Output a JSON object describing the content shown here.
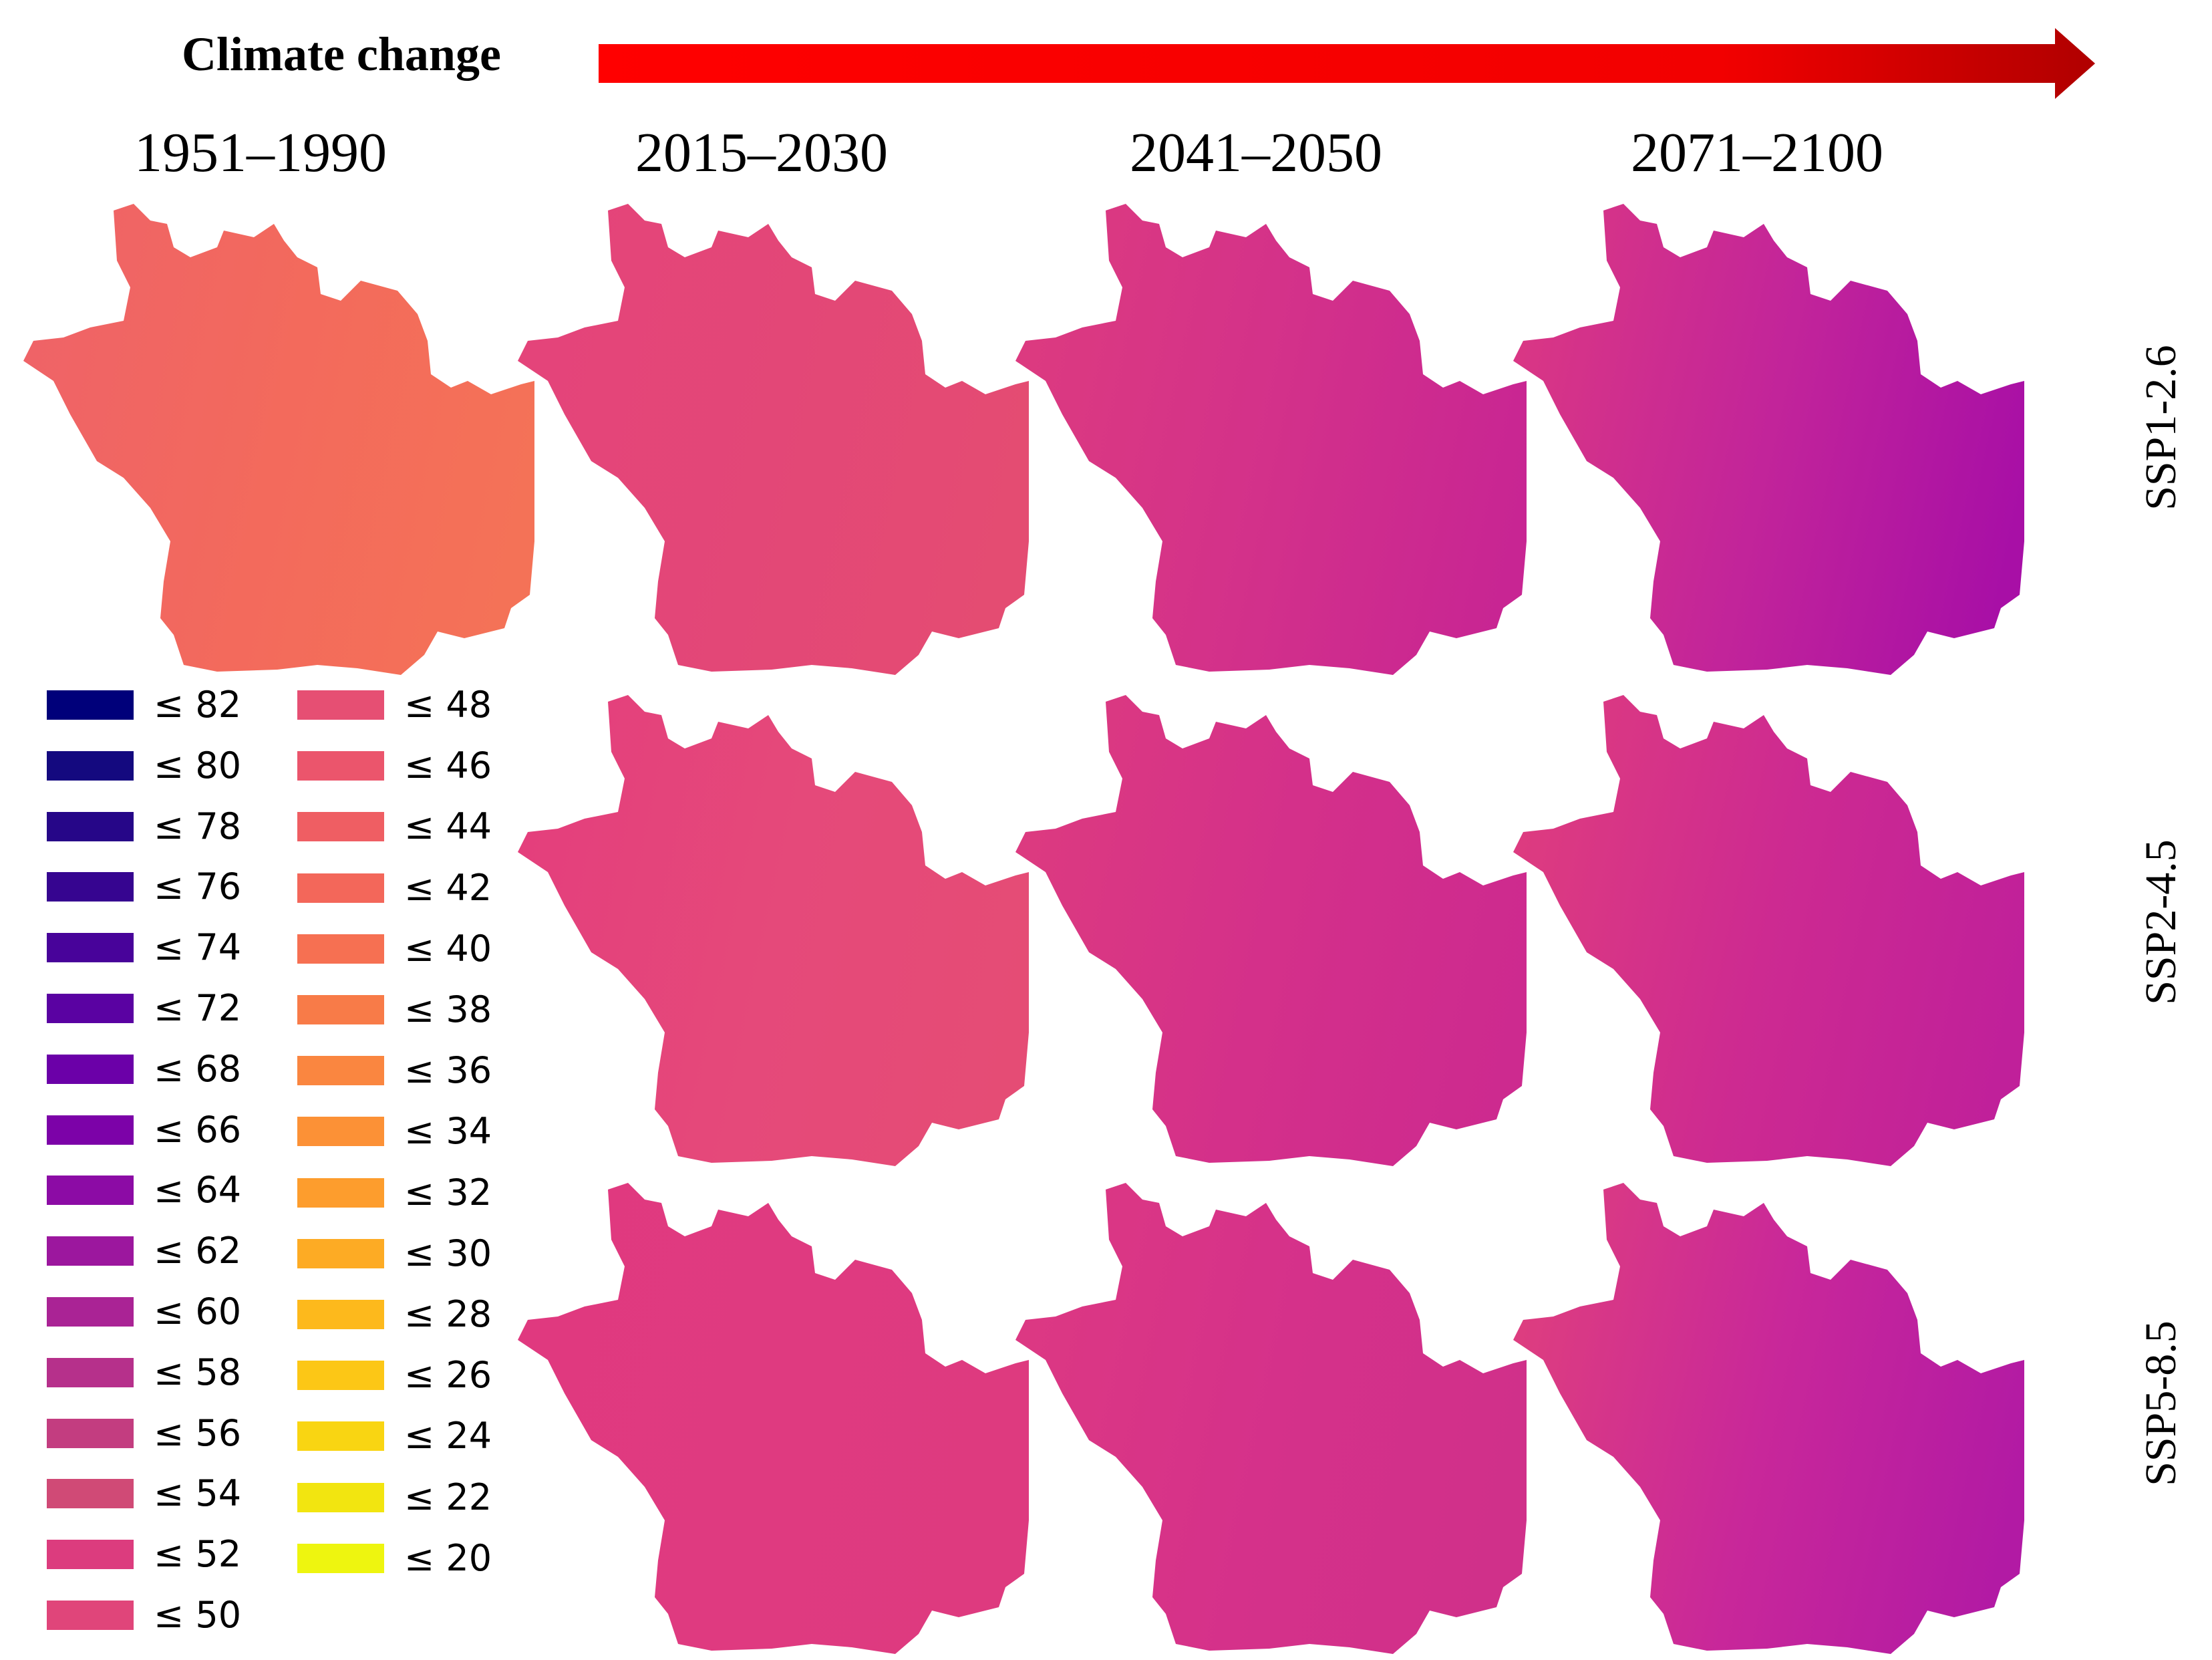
{
  "header": {
    "title": "Climate change",
    "arrow_color_start": "#ff0000",
    "arrow_color_end": "#b00000"
  },
  "periods": [
    "1951–1990",
    "2015–2030",
    "2041–2050",
    "2071–2100"
  ],
  "scenarios": [
    "SSP1-2.6",
    "SSP2-4.5",
    "SSP5-8.5"
  ],
  "legend": [
    {
      "label": "≤ 82",
      "color": "#00007a"
    },
    {
      "label": "≤ 80",
      "color": "#14097f"
    },
    {
      "label": "≤ 78",
      "color": "#260688"
    },
    {
      "label": "≤ 76",
      "color": "#360590"
    },
    {
      "label": "≤ 74",
      "color": "#48039a"
    },
    {
      "label": "≤ 72",
      "color": "#5a02a2"
    },
    {
      "label": "≤ 68",
      "color": "#6b00a8"
    },
    {
      "label": "≤ 66",
      "color": "#7c02a8"
    },
    {
      "label": "≤ 64",
      "color": "#8c0ba5"
    },
    {
      "label": "≤ 62",
      "color": "#9c179e"
    },
    {
      "label": "≤ 60",
      "color": "#aa2395"
    },
    {
      "label": "≤ 58",
      "color": "#b6308b"
    },
    {
      "label": "≤ 56",
      "color": "#c33d80"
    },
    {
      "label": "≤ 54",
      "color": "#d04a76"
    },
    {
      "label": "≤ 52",
      "color": "#dc3c7e"
    },
    {
      "label": "≤ 50",
      "color": "#e0457a"
    },
    {
      "label": "≤ 48",
      "color": "#e64f73"
    },
    {
      "label": "≤ 46",
      "color": "#eb556c"
    },
    {
      "label": "≤ 44",
      "color": "#ef5e63"
    },
    {
      "label": "≤ 42",
      "color": "#f3675a"
    },
    {
      "label": "≤ 40",
      "color": "#f67052"
    },
    {
      "label": "≤ 38",
      "color": "#f87b48"
    },
    {
      "label": "≤ 36",
      "color": "#fa8640"
    },
    {
      "label": "≤ 34",
      "color": "#fc9136"
    },
    {
      "label": "≤ 32",
      "color": "#fd9d2d"
    },
    {
      "label": "≤ 30",
      "color": "#fdab24"
    },
    {
      "label": "≤ 28",
      "color": "#fdb91c"
    },
    {
      "label": "≤ 26",
      "color": "#fcc716"
    },
    {
      "label": "≤ 24",
      "color": "#f9d512"
    },
    {
      "label": "≤ 22",
      "color": "#f2e510"
    },
    {
      "label": "≤ 20",
      "color": "#eef50f"
    }
  ],
  "maps": [
    {
      "period": "1951–1990",
      "scenario": "SSP1-2.6",
      "colors": [
        "#ef6367",
        "#f36a5c",
        "#f47257"
      ]
    },
    {
      "period": "2015–2030",
      "scenario": "SSP1-2.6",
      "colors": [
        "#e4447a",
        "#e34777",
        "#e44c72"
      ]
    },
    {
      "period": "2041–2050",
      "scenario": "SSP1-2.6",
      "colors": [
        "#dc3a80",
        "#d3318a",
        "#c82593"
      ]
    },
    {
      "period": "2071–2100",
      "scenario": "SSP1-2.6",
      "colors": [
        "#d93685",
        "#c2249a",
        "#a80fa6"
      ]
    },
    {
      "period": "2015–2030",
      "scenario": "SSP2-4.5",
      "colors": [
        "#e43f7c",
        "#e5497a",
        "#e54c75"
      ]
    },
    {
      "period": "2041–2050",
      "scenario": "SSP2-4.5",
      "colors": [
        "#dc3a80",
        "#d4308a",
        "#cd2a8f"
      ]
    },
    {
      "period": "2071–2100",
      "scenario": "SSP2-4.5",
      "colors": [
        "#dd3b80",
        "#cd2a91",
        "#c0209a"
      ]
    },
    {
      "period": "2015–2030",
      "scenario": "SSP5-8.5",
      "colors": [
        "#e0397f",
        "#df3a80",
        "#de3a7f"
      ]
    },
    {
      "period": "2041–2050",
      "scenario": "SSP5-8.5",
      "colors": [
        "#dc3883",
        "#d5318a",
        "#d0308a"
      ]
    },
    {
      "period": "2071–2100",
      "scenario": "SSP5-8.5",
      "colors": [
        "#dd3d80",
        "#c8279a",
        "#b21aa4"
      ]
    }
  ]
}
